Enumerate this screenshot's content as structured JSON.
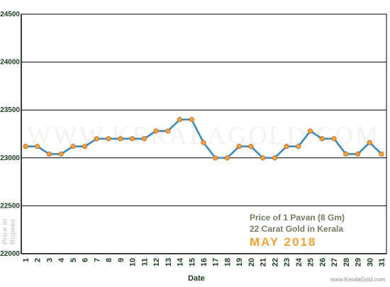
{
  "chart_data": {
    "type": "line",
    "x": [
      1,
      2,
      3,
      4,
      5,
      6,
      7,
      8,
      9,
      10,
      11,
      12,
      13,
      14,
      15,
      16,
      17,
      18,
      19,
      20,
      21,
      22,
      23,
      24,
      25,
      26,
      27,
      28,
      29,
      30,
      31
    ],
    "categories": [
      "1",
      "2",
      "3",
      "4",
      "5",
      "6",
      "7",
      "8",
      "9",
      "10",
      "11",
      "12",
      "13",
      "14",
      "15",
      "16",
      "17",
      "18",
      "19",
      "20",
      "21",
      "22",
      "23",
      "24",
      "25",
      "26",
      "27",
      "28",
      "29",
      "30",
      "31"
    ],
    "values": [
      23120,
      23120,
      23040,
      23040,
      23120,
      23120,
      23200,
      23200,
      23200,
      23200,
      23200,
      23280,
      23280,
      23400,
      23400,
      23160,
      23000,
      23000,
      23120,
      23120,
      23000,
      23000,
      23120,
      23120,
      23280,
      23200,
      23200,
      23040,
      23040,
      23160,
      23040
    ],
    "xlabel": "Date",
    "ylabel": "Price in Rupees",
    "ylim": [
      22000,
      24500
    ],
    "yticks": [
      22000,
      22500,
      23000,
      23500,
      24000,
      24500
    ],
    "grid": "horizontal",
    "colors": {
      "line": "#2f86b8",
      "marker": "#f4a340",
      "marker_edge": "#b8651a"
    }
  },
  "annotation": {
    "line1": "Price of 1 Pavan (8 Gm)",
    "line2": "22 Carat Gold in Kerala",
    "line3": "MAY 2018"
  },
  "watermark": "WWW.KERALAGOLD.COM",
  "website": "www.KeralaGold.com"
}
